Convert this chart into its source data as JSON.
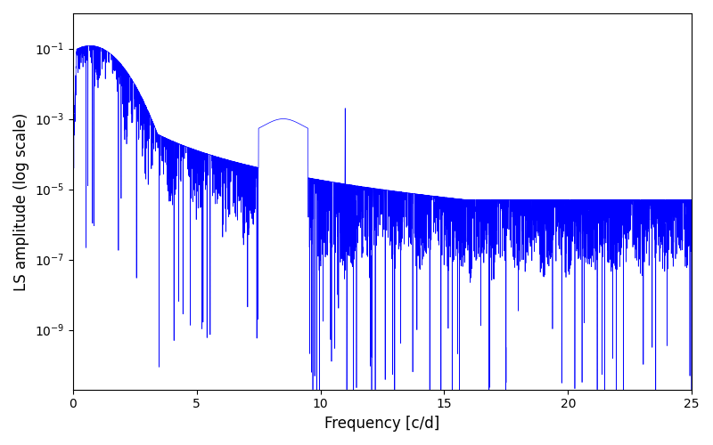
{
  "title": "",
  "xlabel": "Frequency [c/d]",
  "ylabel": "LS amplitude (log scale)",
  "xlim": [
    0,
    25
  ],
  "ylim_log_min": -10.7,
  "ylim_log_max": 0,
  "line_color": "#0000FF",
  "line_width": 0.5,
  "figsize": [
    8.0,
    5.0
  ],
  "dpi": 100,
  "freq_min": 0.001,
  "freq_max": 25.0,
  "n_points": 6000,
  "seed": 7,
  "background_color": "#ffffff",
  "xticks": [
    0,
    5,
    10,
    15,
    20,
    25
  ]
}
